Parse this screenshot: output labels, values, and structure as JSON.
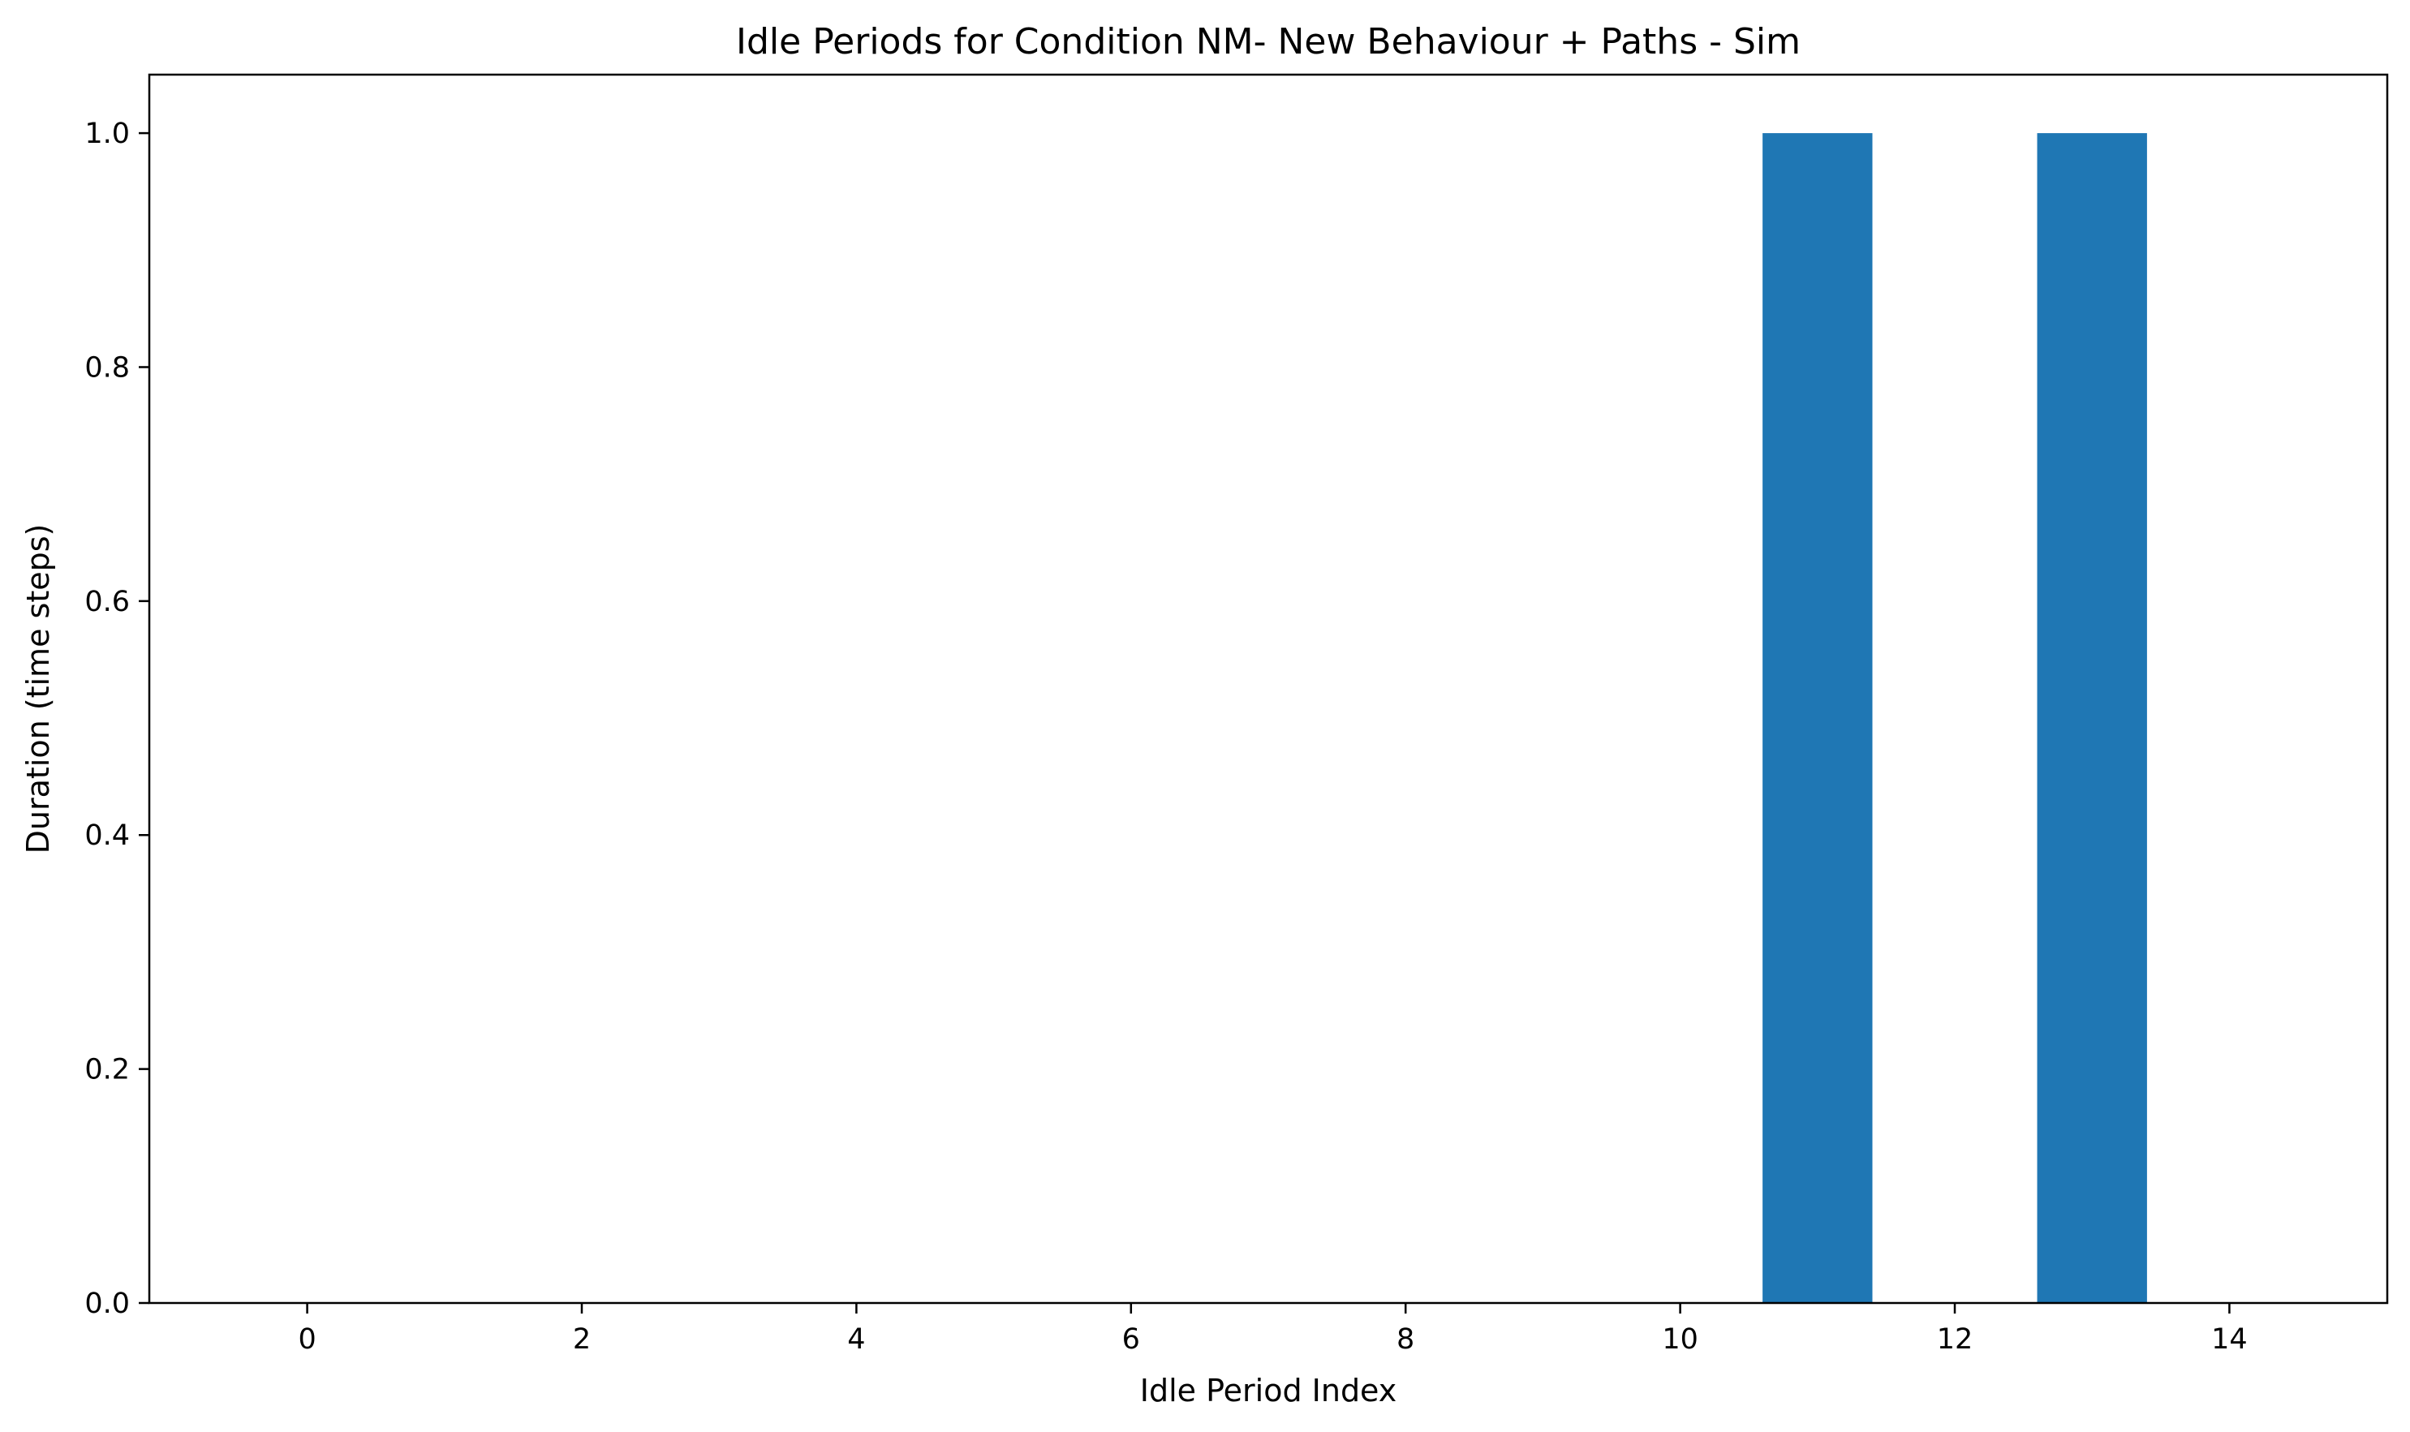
{
  "chart_data": {
    "type": "bar",
    "title": "Idle Periods for Condition NM- New Behaviour + Paths - Sim",
    "xlabel": "Idle Period Index",
    "ylabel": "Duration (time steps)",
    "categories": [
      0,
      1,
      2,
      3,
      4,
      5,
      6,
      7,
      8,
      9,
      10,
      11,
      12,
      13,
      14
    ],
    "values": [
      0,
      0,
      0,
      0,
      0,
      0,
      0,
      0,
      0,
      0,
      0,
      1,
      0,
      1,
      0
    ],
    "xlim": [
      -1.15,
      15.15
    ],
    "ylim": [
      0,
      1.05
    ],
    "xticks": [
      0,
      2,
      4,
      6,
      8,
      10,
      12,
      14
    ],
    "xtick_labels": [
      "0",
      "2",
      "4",
      "6",
      "8",
      "10",
      "12",
      "14"
    ],
    "yticks": [
      0.0,
      0.2,
      0.4,
      0.6,
      0.8,
      1.0
    ],
    "ytick_labels": [
      "0.0",
      "0.2",
      "0.4",
      "0.6",
      "0.8",
      "1.0"
    ],
    "bar_width": 0.8,
    "bar_color": "#1f77b4",
    "grid": false,
    "legend": "none"
  }
}
